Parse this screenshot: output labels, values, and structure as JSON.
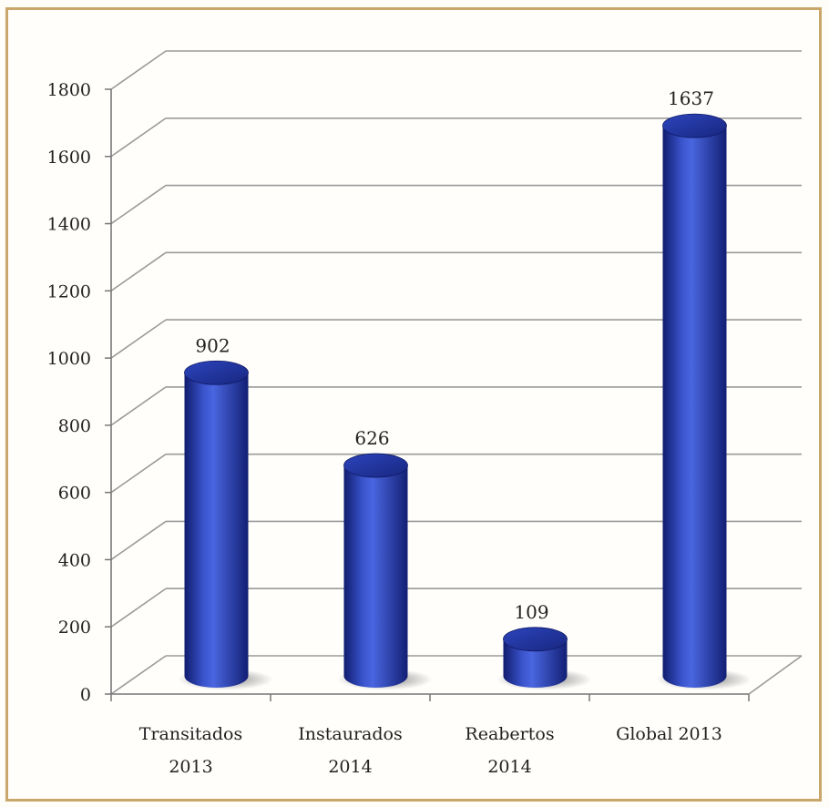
{
  "chart_data": {
    "type": "bar",
    "style": "3d-cylinder",
    "categories": [
      [
        "Transitados",
        "2013"
      ],
      [
        "Instaurados",
        "2014"
      ],
      [
        "Reabertos",
        "2014"
      ],
      [
        "Global 2013"
      ]
    ],
    "values": [
      902,
      626,
      109,
      1637
    ],
    "data_labels": [
      "902",
      "626",
      "109",
      "1637"
    ],
    "y_ticks": [
      "0",
      "200",
      "400",
      "600",
      "800",
      "1000",
      "1200",
      "1400",
      "1600",
      "1800"
    ],
    "ylim": [
      0,
      1800
    ],
    "grid": true,
    "legend": false,
    "colors": {
      "bar": "#1f2f9a",
      "bar_light": "#4a63d8",
      "bar_dark": "#0f1a66",
      "grid": "#9a9a9a",
      "frame": "#c9a76a"
    }
  }
}
